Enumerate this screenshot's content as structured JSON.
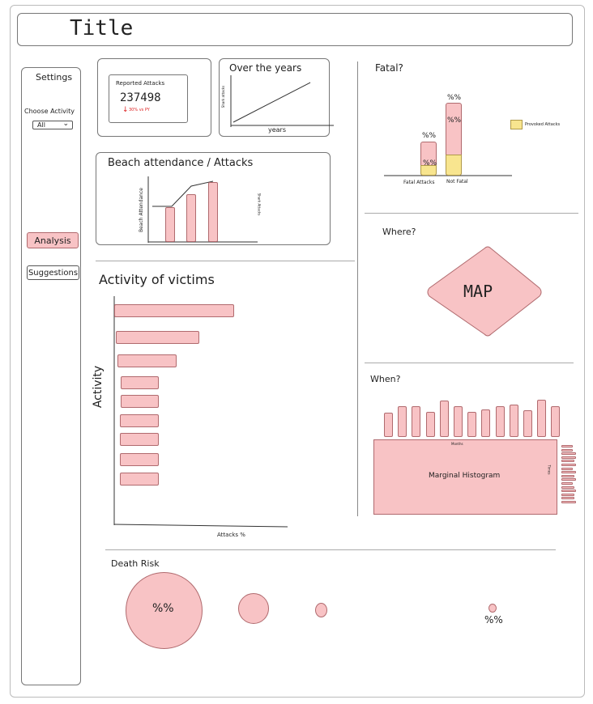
{
  "page": {
    "title": "Title"
  },
  "settings": {
    "heading": "Settings",
    "choose_label": "Choose Activity",
    "select_value": "All",
    "analysis_label": "Analysis",
    "suggestions_label": "Suggestions"
  },
  "kpi": {
    "label": "Reported Attacks",
    "value": "237498",
    "delta": "30% vs PY"
  },
  "over_years": {
    "title": "Over the years",
    "xlabel": "years",
    "ylabel": "Shark attacks"
  },
  "beach": {
    "title": "Beach attendance / Attacks",
    "ylabel": "Beach Attendance",
    "y2label": "Shark Attacks"
  },
  "fatal": {
    "title": "Fatal?",
    "legend": "Provoked Attacks",
    "categories": [
      "Fatal Attacks",
      "Not Fatal"
    ],
    "pct_top": "%%",
    "pct_inner": "%%"
  },
  "where": {
    "title": "Where?",
    "map_label": "MAP"
  },
  "activity": {
    "title": "Activity of victims",
    "ylabel": "Activity",
    "xlabel": "Attacks %"
  },
  "when": {
    "title": "When?",
    "months_label": "Months",
    "side_label": "Times",
    "center_label": "Marginal Histogram"
  },
  "death": {
    "title": "Death Risk",
    "pct1": "%%",
    "pct2": "%%"
  },
  "chart_data": [
    {
      "type": "bar",
      "title": "Fatal?",
      "categories": [
        "Fatal Attacks",
        "Not Fatal"
      ],
      "series": [
        {
          "name": "Provoked Attacks",
          "values": [
            0.2,
            0.4
          ]
        }
      ],
      "totals": [
        0.7,
        1.5
      ]
    },
    {
      "type": "bar",
      "title": "Activity of victims",
      "orientation": "horizontal",
      "values": [
        100,
        71,
        52,
        37,
        37,
        37,
        37,
        37,
        37
      ],
      "xlabel": "Attacks %",
      "ylabel": "Activity"
    },
    {
      "type": "bar",
      "title": "Beach attendance / Attacks",
      "values": [
        46,
        62,
        77
      ],
      "ylabel": "Beach Attendance"
    },
    {
      "type": "bar",
      "title": "When?",
      "label": "Months",
      "values": [
        30,
        38,
        38,
        31,
        45,
        38,
        31,
        34,
        38,
        40,
        33,
        46,
        38
      ]
    },
    {
      "type": "bar",
      "title": "When?",
      "label": "Times",
      "orientation": "horizontal",
      "values": [
        14,
        14,
        18,
        18,
        16,
        18,
        14,
        18,
        16,
        18,
        14,
        16,
        18,
        16,
        16,
        18
      ]
    }
  ]
}
